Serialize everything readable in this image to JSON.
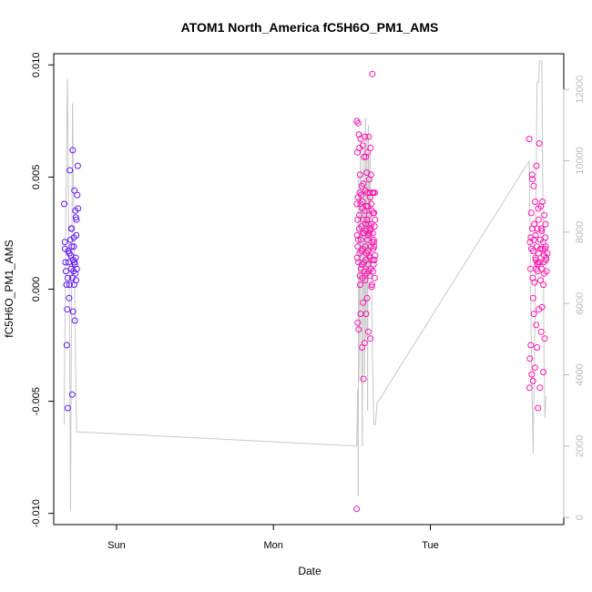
{
  "chart_data": {
    "type": "scatter",
    "title": "ATOM1 North_America fC5H6O_PM1_AMS",
    "xlabel": "Date",
    "ylabel": "fC5H6O_PM1_AMS",
    "x_units": "days since Sun 00:00",
    "xlim": [
      -0.4,
      2.85
    ],
    "ylim": [
      -0.0105,
      0.0105
    ],
    "y2lim": [
      -200,
      13000
    ],
    "x_ticks": [
      {
        "value": 0,
        "label": "Sun"
      },
      {
        "value": 1,
        "label": "Mon"
      },
      {
        "value": 2,
        "label": "Tue"
      }
    ],
    "y_ticks": [
      {
        "value": -0.01,
        "label": "-0.010"
      },
      {
        "value": -0.005,
        "label": "-0.005"
      },
      {
        "value": 0,
        "label": "0.000"
      },
      {
        "value": 0.005,
        "label": "0.005"
      },
      {
        "value": 0.01,
        "label": "0.010"
      }
    ],
    "y2_ticks": [
      {
        "value": 0,
        "label": "0"
      },
      {
        "value": 2000,
        "label": "2000"
      },
      {
        "value": 4000,
        "label": "4000"
      },
      {
        "value": 6000,
        "label": "6000"
      },
      {
        "value": 8000,
        "label": "8000"
      },
      {
        "value": 10000,
        "label": "10000"
      },
      {
        "value": 12000,
        "label": "12000"
      }
    ],
    "grid": false,
    "colors": {
      "point_start": "#5a17ff",
      "point_end": "#ff18b0",
      "line": "#c8c8c8",
      "axis": "#000000",
      "y2_axis": "#bbbbbb"
    },
    "series": [
      {
        "type": "scatter",
        "points": [
          [
            -0.333,
            0.0038
          ],
          [
            -0.33,
            0.0021
          ],
          [
            -0.328,
            0.0018
          ],
          [
            -0.325,
            0.0012
          ],
          [
            -0.322,
            0.0008
          ],
          [
            -0.319,
            0.0002
          ],
          [
            -0.317,
            -0.0025
          ],
          [
            -0.314,
            -0.0009
          ],
          [
            -0.311,
            -0.0053
          ],
          [
            -0.308,
            0.0017
          ],
          [
            -0.305,
            0.0012
          ],
          [
            -0.302,
            -0.0004
          ],
          [
            -0.299,
            0.0002
          ],
          [
            -0.297,
            0.0053
          ],
          [
            -0.294,
            0.0022
          ],
          [
            -0.291,
            0.0015
          ],
          [
            -0.288,
            0.0027
          ],
          [
            -0.285,
            0.0019
          ],
          [
            -0.282,
            -0.0047
          ],
          [
            -0.279,
            0.0062
          ],
          [
            -0.277,
            -0.001
          ],
          [
            -0.274,
            0.0008
          ],
          [
            -0.271,
            0.0023
          ],
          [
            -0.268,
            0.0044
          ],
          [
            -0.265,
            0.0011
          ],
          [
            -0.262,
            0.0035
          ],
          [
            -0.259,
            0.0032
          ],
          [
            -0.256,
            0.0024
          ],
          [
            -0.253,
            0.0009
          ],
          [
            -0.25,
            0.0042
          ],
          [
            -0.247,
            0.0055
          ],
          [
            -0.245,
            0.0036
          ],
          [
            -0.282,
            0.0005
          ],
          [
            -0.275,
            0.0013
          ],
          [
            -0.27,
            0.0002
          ],
          [
            -0.266,
            -0.0014
          ],
          [
            -0.26,
            0.0014
          ],
          [
            -0.255,
            0.0031
          ],
          [
            -0.289,
            0.0009
          ],
          [
            -0.3,
            0.0016
          ],
          [
            -0.31,
            0.0005
          ],
          [
            -0.262,
            0.0007
          ],
          [
            -0.268,
            0.0012
          ],
          [
            -0.272,
            0.0019
          ],
          [
            -0.286,
            0.0027
          ],
          [
            -0.258,
            0.0004
          ],
          [
            1.53,
            -0.0098
          ],
          [
            1.531,
            0.0075
          ],
          [
            1.532,
            0.0038
          ],
          [
            1.533,
            0.0024
          ],
          [
            1.534,
            0.0014
          ],
          [
            1.535,
            0.0061
          ],
          [
            1.536,
            0.0031
          ],
          [
            1.537,
            0.0019
          ],
          [
            1.538,
            -0.0015
          ],
          [
            1.539,
            0.0041
          ],
          [
            1.54,
            0.0074
          ],
          [
            1.541,
            0.0022
          ],
          [
            1.542,
            0.0012
          ],
          [
            1.543,
            -0.0018
          ],
          [
            1.544,
            0.0069
          ],
          [
            1.546,
            0.0027
          ],
          [
            1.547,
            0.0033
          ],
          [
            1.548,
            0.0063
          ],
          [
            1.549,
            0.0016
          ],
          [
            1.55,
            0.0043
          ],
          [
            1.551,
            0.0006
          ],
          [
            1.552,
            0.0051
          ],
          [
            1.553,
            0.0002
          ],
          [
            1.554,
            0.0038
          ],
          [
            1.555,
            -0.0011
          ],
          [
            1.556,
            0.0067
          ],
          [
            1.557,
            0.0022
          ],
          [
            1.558,
            0.0009
          ],
          [
            1.559,
            0.0042
          ],
          [
            1.561,
            0.0028
          ],
          [
            1.562,
            0.0017
          ],
          [
            1.563,
            0.0046
          ],
          [
            1.564,
            0.0011
          ],
          [
            1.565,
            -0.0026
          ],
          [
            1.566,
            0.0036
          ],
          [
            1.567,
            0.0005
          ],
          [
            1.568,
            0.0039
          ],
          [
            1.569,
            0.0064
          ],
          [
            1.57,
            0.0018
          ],
          [
            1.571,
            -0.0006
          ],
          [
            1.572,
            0.0025
          ],
          [
            1.573,
            0.0047
          ],
          [
            1.574,
            -0.004
          ],
          [
            1.575,
            0.0031
          ],
          [
            1.576,
            0.0012
          ],
          [
            1.577,
            0.0059
          ],
          [
            1.578,
            0.0025
          ],
          [
            1.579,
            0.0008
          ],
          [
            1.58,
            0.0035
          ],
          [
            1.581,
            -0.0024
          ],
          [
            1.583,
            0.0068
          ],
          [
            1.584,
            0.0019
          ],
          [
            1.585,
            0.0004
          ],
          [
            1.586,
            0.0029
          ],
          [
            1.587,
            0.0044
          ],
          [
            1.588,
            0.0013
          ],
          [
            1.589,
            0.0059
          ],
          [
            1.59,
            0.0026
          ],
          [
            1.591,
            -0.0011
          ],
          [
            1.592,
            0.0037
          ],
          [
            1.593,
            0.0016
          ],
          [
            1.594,
            0.0052
          ],
          [
            1.595,
            0.0031
          ],
          [
            1.596,
            0.0007
          ],
          [
            1.597,
            -0.0004
          ],
          [
            1.598,
            0.0043
          ],
          [
            1.599,
            0.0022
          ],
          [
            1.6,
            0.0061
          ],
          [
            1.601,
            0.0017
          ],
          [
            1.602,
            0.0037
          ],
          [
            1.603,
            0.0011
          ],
          [
            1.604,
            -0.0019
          ],
          [
            1.605,
            0.0029
          ],
          [
            1.606,
            0.0024
          ],
          [
            1.607,
            0.0068
          ],
          [
            1.608,
            0.0008
          ],
          [
            1.609,
            0.0033
          ],
          [
            1.61,
            0.0049
          ],
          [
            1.611,
            0.0015
          ],
          [
            1.612,
            0.0025
          ],
          [
            1.613,
            0.0043
          ],
          [
            1.614,
            0.0006
          ],
          [
            1.615,
            0.0026
          ],
          [
            1.616,
            0.0014
          ],
          [
            1.617,
            0.0041
          ],
          [
            1.618,
            -0.0022
          ],
          [
            1.619,
            0.0063
          ],
          [
            1.62,
            0.0027
          ],
          [
            1.621,
            0.0009
          ],
          [
            1.622,
            0.0051
          ],
          [
            1.623,
            0.0019
          ],
          [
            1.624,
            0.0038
          ],
          [
            1.625,
            0.0029
          ],
          [
            1.626,
            0.0001
          ],
          [
            1.627,
            0.0035
          ],
          [
            1.628,
            0.0002
          ],
          [
            1.629,
            0.0021
          ],
          [
            1.63,
            0.0096
          ],
          [
            1.631,
            0.0043
          ],
          [
            1.632,
            0.0013
          ],
          [
            1.633,
            0.0025
          ],
          [
            1.634,
            0.0008
          ],
          [
            1.635,
            0.0034
          ],
          [
            1.636,
            0.0018
          ],
          [
            1.637,
            0.0043
          ],
          [
            1.638,
            0.0011
          ],
          [
            1.639,
            0.0022
          ],
          [
            1.64,
            0.0021
          ],
          [
            1.641,
            0.0034
          ],
          [
            1.642,
            0.0019
          ],
          [
            1.643,
            0.0013
          ],
          [
            1.644,
            0.0028
          ],
          [
            1.645,
            0.0005
          ],
          [
            1.646,
            0.0043
          ],
          [
            1.647,
            0.0031
          ],
          [
            1.648,
            0.0015
          ],
          [
            2.63,
            0.0067
          ],
          [
            2.632,
            -0.0044
          ],
          [
            2.634,
            -0.0031
          ],
          [
            2.636,
            0.0021
          ],
          [
            2.638,
            0.0009
          ],
          [
            2.64,
            -0.0025
          ],
          [
            2.642,
            0.0034
          ],
          [
            2.644,
            0.0018
          ],
          [
            2.646,
            -0.0038
          ],
          [
            2.648,
            0.0051
          ],
          [
            2.65,
            0.0027
          ],
          [
            2.652,
            0.0005
          ],
          [
            2.654,
            -0.0041
          ],
          [
            2.656,
            0.0017
          ],
          [
            2.658,
            0.0046
          ],
          [
            2.66,
            -0.0011
          ],
          [
            2.662,
            0.0029
          ],
          [
            2.664,
            0.0003
          ],
          [
            2.666,
            -0.0035
          ],
          [
            2.668,
            0.0039
          ],
          [
            2.67,
            0.0024
          ],
          [
            2.672,
            0.0013
          ],
          [
            2.674,
            -0.0016
          ],
          [
            2.676,
            0.0055
          ],
          [
            2.678,
            0.0019
          ],
          [
            2.68,
            -0.0026
          ],
          [
            2.682,
            0.0027
          ],
          [
            2.684,
            0.0008
          ],
          [
            2.686,
            -0.0053
          ],
          [
            2.688,
            0.0036
          ],
          [
            2.69,
            0.0016
          ],
          [
            2.692,
            -0.0009
          ],
          [
            2.694,
            0.0065
          ],
          [
            2.696,
            0.0012
          ],
          [
            2.698,
            -0.0044
          ],
          [
            2.7,
            0.0022
          ],
          [
            2.702,
            0.0004
          ],
          [
            2.704,
            0.0037
          ],
          [
            2.706,
            -0.0019
          ],
          [
            2.708,
            0.0027
          ],
          [
            2.71,
            0.0009
          ],
          [
            2.712,
            -0.0008
          ],
          [
            2.714,
            0.0039
          ],
          [
            2.716,
            0.0018
          ],
          [
            2.718,
            0.0021
          ],
          [
            2.72,
            -0.0037
          ],
          [
            2.722,
            0.0012
          ],
          [
            2.724,
            0.0007
          ],
          [
            2.726,
            0.0033
          ],
          [
            2.728,
            -0.0022
          ],
          [
            2.73,
            0.0018
          ],
          [
            2.732,
            0.0023
          ],
          [
            2.734,
            0.0029
          ],
          [
            2.736,
            0.0013
          ],
          [
            2.738,
            0.0014
          ],
          [
            2.74,
            0.0008
          ],
          [
            2.65,
            0.0049
          ],
          [
            2.66,
            0.0022
          ],
          [
            2.67,
            0.0014
          ],
          [
            2.68,
            0.0011
          ],
          [
            2.69,
            0.0031
          ],
          [
            2.7,
            0.0018
          ],
          [
            2.71,
            0.0026
          ],
          [
            2.72,
            0.0002
          ],
          [
            2.725,
            0.0015
          ],
          [
            2.735,
            0.0019
          ],
          [
            2.745,
            0.0016
          ],
          [
            2.64,
            0.0023
          ],
          [
            2.655,
            -0.0004
          ],
          [
            2.675,
            0.0009
          ],
          [
            2.685,
            0.0012
          ]
        ]
      },
      {
        "type": "line",
        "axis": "y2",
        "points": [
          [
            -0.333,
            2600
          ],
          [
            -0.323,
            8500
          ],
          [
            -0.313,
            12300
          ],
          [
            -0.3,
            6200
          ],
          [
            -0.293,
            200
          ],
          [
            -0.28,
            11600
          ],
          [
            -0.27,
            7600
          ],
          [
            -0.255,
            2400
          ],
          [
            -0.233,
            2400
          ],
          [
            1.53,
            2000
          ],
          [
            1.537,
            3600
          ],
          [
            1.54,
            600
          ],
          [
            1.543,
            9600
          ],
          [
            1.55,
            3800
          ],
          [
            1.556,
            10800
          ],
          [
            1.56,
            8600
          ],
          [
            1.566,
            2000
          ],
          [
            1.573,
            10400
          ],
          [
            1.58,
            4000
          ],
          [
            1.586,
            11200
          ],
          [
            1.59,
            5000
          ],
          [
            1.596,
            10600
          ],
          [
            1.6,
            3000
          ],
          [
            1.606,
            11000
          ],
          [
            1.61,
            7000
          ],
          [
            1.616,
            10200
          ],
          [
            1.623,
            7600
          ],
          [
            1.63,
            4600
          ],
          [
            1.64,
            2600
          ],
          [
            1.65,
            2600
          ],
          [
            1.66,
            3200
          ],
          [
            2.63,
            10000
          ],
          [
            2.645,
            4000
          ],
          [
            2.655,
            1800
          ],
          [
            2.665,
            5200
          ],
          [
            2.68,
            12200
          ],
          [
            2.69,
            12200
          ],
          [
            2.695,
            12800
          ],
          [
            2.71,
            12800
          ],
          [
            2.717,
            8800
          ],
          [
            2.724,
            4400
          ],
          [
            2.73,
            2800
          ],
          [
            2.736,
            3400
          ]
        ]
      }
    ]
  }
}
